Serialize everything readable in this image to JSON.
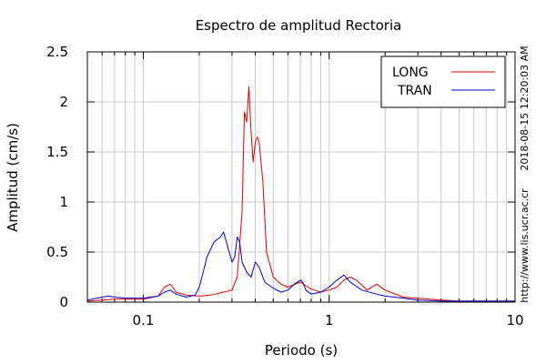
{
  "chart_data": {
    "type": "line",
    "title": "Espectro de amplitud Rectoria",
    "xlabel": "Periodo (s)",
    "ylabel": "Amplitud (cm/s)",
    "x_scale": "log",
    "xlim": [
      0.05,
      10
    ],
    "ylim": [
      0,
      2.5
    ],
    "grid": true,
    "legend_position": "top-right",
    "x_tick_labels": [
      {
        "value": 0.1,
        "label": "0.1"
      },
      {
        "value": 1,
        "label": "1"
      },
      {
        "value": 10,
        "label": "10"
      }
    ],
    "y_tick_labels": [
      {
        "value": 0,
        "label": "0"
      },
      {
        "value": 0.5,
        "label": "0.5"
      },
      {
        "value": 1,
        "label": "1"
      },
      {
        "value": 1.5,
        "label": "1.5"
      },
      {
        "value": 2,
        "label": "2"
      },
      {
        "value": 2.5,
        "label": "2.5"
      }
    ],
    "series": [
      {
        "name": "LONG",
        "color": "#e00000",
        "points": [
          [
            0.05,
            0.01
          ],
          [
            0.06,
            0.02
          ],
          [
            0.07,
            0.03
          ],
          [
            0.08,
            0.03
          ],
          [
            0.1,
            0.03
          ],
          [
            0.12,
            0.06
          ],
          [
            0.13,
            0.15
          ],
          [
            0.14,
            0.18
          ],
          [
            0.15,
            0.1
          ],
          [
            0.17,
            0.07
          ],
          [
            0.2,
            0.06
          ],
          [
            0.23,
            0.07
          ],
          [
            0.27,
            0.1
          ],
          [
            0.3,
            0.12
          ],
          [
            0.32,
            0.25
          ],
          [
            0.34,
            0.9
          ],
          [
            0.35,
            1.9
          ],
          [
            0.36,
            1.8
          ],
          [
            0.37,
            2.15
          ],
          [
            0.38,
            1.7
          ],
          [
            0.39,
            1.4
          ],
          [
            0.4,
            1.6
          ],
          [
            0.41,
            1.65
          ],
          [
            0.42,
            1.6
          ],
          [
            0.44,
            1.2
          ],
          [
            0.46,
            0.5
          ],
          [
            0.5,
            0.25
          ],
          [
            0.55,
            0.18
          ],
          [
            0.6,
            0.15
          ],
          [
            0.7,
            0.2
          ],
          [
            0.8,
            0.13
          ],
          [
            0.9,
            0.1
          ],
          [
            1.0,
            0.12
          ],
          [
            1.1,
            0.15
          ],
          [
            1.2,
            0.22
          ],
          [
            1.3,
            0.25
          ],
          [
            1.4,
            0.22
          ],
          [
            1.6,
            0.12
          ],
          [
            1.8,
            0.18
          ],
          [
            2.0,
            0.12
          ],
          [
            2.5,
            0.05
          ],
          [
            3.0,
            0.04
          ],
          [
            3.5,
            0.03
          ],
          [
            4.0,
            0.02
          ],
          [
            5.0,
            0.01
          ],
          [
            7.0,
            0.01
          ],
          [
            10.0,
            0.01
          ]
        ]
      },
      {
        "name": "TRAN",
        "color": "#0000c8",
        "points": [
          [
            0.05,
            0.02
          ],
          [
            0.06,
            0.05
          ],
          [
            0.065,
            0.06
          ],
          [
            0.07,
            0.05
          ],
          [
            0.08,
            0.04
          ],
          [
            0.09,
            0.04
          ],
          [
            0.1,
            0.04
          ],
          [
            0.12,
            0.06
          ],
          [
            0.13,
            0.1
          ],
          [
            0.14,
            0.12
          ],
          [
            0.15,
            0.08
          ],
          [
            0.17,
            0.05
          ],
          [
            0.19,
            0.07
          ],
          [
            0.2,
            0.15
          ],
          [
            0.21,
            0.3
          ],
          [
            0.22,
            0.45
          ],
          [
            0.24,
            0.6
          ],
          [
            0.26,
            0.65
          ],
          [
            0.27,
            0.7
          ],
          [
            0.28,
            0.6
          ],
          [
            0.3,
            0.4
          ],
          [
            0.31,
            0.45
          ],
          [
            0.32,
            0.65
          ],
          [
            0.33,
            0.6
          ],
          [
            0.34,
            0.4
          ],
          [
            0.36,
            0.3
          ],
          [
            0.38,
            0.25
          ],
          [
            0.4,
            0.4
          ],
          [
            0.42,
            0.35
          ],
          [
            0.45,
            0.2
          ],
          [
            0.5,
            0.14
          ],
          [
            0.55,
            0.1
          ],
          [
            0.6,
            0.12
          ],
          [
            0.65,
            0.18
          ],
          [
            0.7,
            0.22
          ],
          [
            0.72,
            0.2
          ],
          [
            0.75,
            0.12
          ],
          [
            0.8,
            0.08
          ],
          [
            0.9,
            0.1
          ],
          [
            1.0,
            0.15
          ],
          [
            1.1,
            0.22
          ],
          [
            1.2,
            0.27
          ],
          [
            1.3,
            0.2
          ],
          [
            1.5,
            0.12
          ],
          [
            1.8,
            0.08
          ],
          [
            2.0,
            0.06
          ],
          [
            2.5,
            0.04
          ],
          [
            3.0,
            0.02
          ],
          [
            4.0,
            0.01
          ],
          [
            6.0,
            0.01
          ],
          [
            10.0,
            0.01
          ]
        ]
      }
    ],
    "side_annotations": [
      "2018-08-15 12:20:03 AM",
      "http://www.lis.ucr.ac.cr"
    ]
  }
}
